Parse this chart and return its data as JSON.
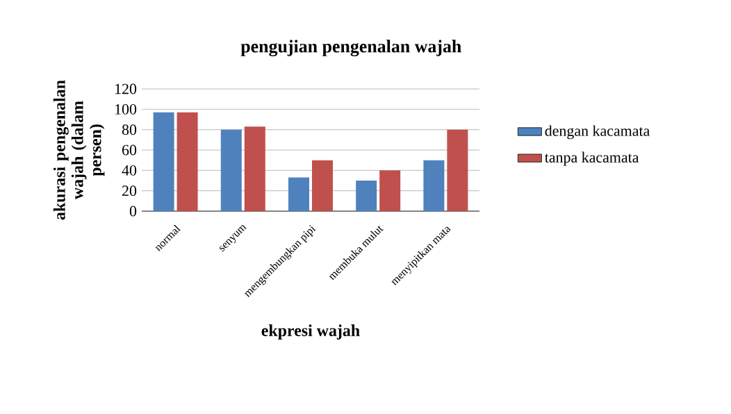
{
  "chart_data": {
    "type": "bar",
    "title": "pengujian pengenalan wajah",
    "xlabel": "ekpresi wajah",
    "ylabel": "akurasi pengenalan wajah (dalam persen)",
    "categories": [
      "normal",
      "senyum",
      "mengembungkan pipi",
      "membuka mulut",
      "menyipitkan mata"
    ],
    "series": [
      {
        "name": "dengan kacamata",
        "color": "#4f81bd",
        "values": [
          97,
          80,
          33,
          30,
          50
        ]
      },
      {
        "name": "tanpa kacamata",
        "color": "#c0504d",
        "values": [
          97,
          83,
          50,
          40,
          80
        ]
      }
    ],
    "ylim": [
      0,
      120
    ],
    "yticks": [
      0,
      20,
      40,
      60,
      80,
      100,
      120
    ],
    "grid": "y",
    "legend": "right"
  }
}
